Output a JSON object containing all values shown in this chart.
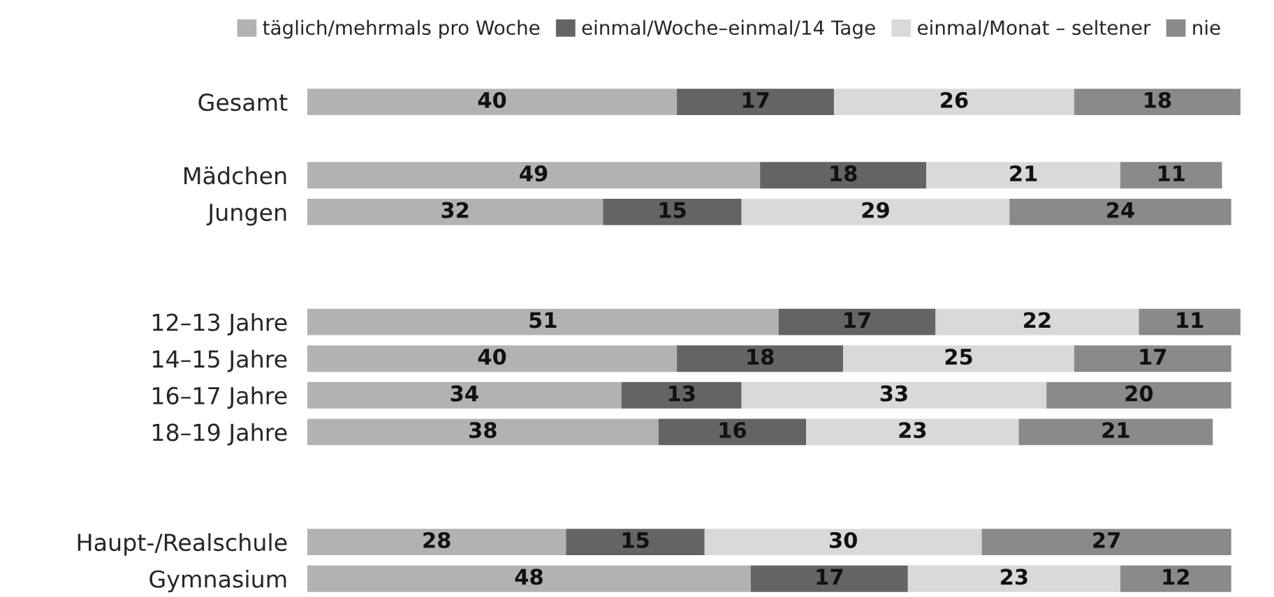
{
  "chart_data": {
    "type": "bar",
    "orientation": "horizontal",
    "stacked": true,
    "data_labels": true,
    "legend": "top",
    "grid": false,
    "categories": [
      "Gesamt",
      null,
      "Mädchen",
      "Jungen",
      null,
      null,
      "12–13 Jahre",
      "14–15 Jahre",
      "16–17 Jahre",
      "18–19 Jahre",
      null,
      null,
      "Haupt-/Realschule",
      "Gymnasium"
    ],
    "series": [
      {
        "name": "täglich/mehrmals pro Woche",
        "color": "#b2b2b2",
        "values": [
          40,
          null,
          49,
          32,
          null,
          null,
          51,
          40,
          34,
          38,
          null,
          null,
          28,
          48
        ]
      },
      {
        "name": "einmal/Woche–einmal/14 Tage",
        "color": "#646464",
        "values": [
          17,
          null,
          18,
          15,
          null,
          null,
          17,
          18,
          13,
          16,
          null,
          null,
          15,
          17
        ]
      },
      {
        "name": "einmal/Monat – seltener",
        "color": "#d9d9d9",
        "values": [
          26,
          null,
          21,
          29,
          null,
          null,
          22,
          25,
          33,
          23,
          null,
          null,
          30,
          23
        ]
      },
      {
        "name": "nie",
        "color": "#8a8a8a",
        "values": [
          18,
          null,
          11,
          24,
          null,
          null,
          11,
          17,
          20,
          21,
          null,
          null,
          27,
          12
        ]
      }
    ]
  }
}
